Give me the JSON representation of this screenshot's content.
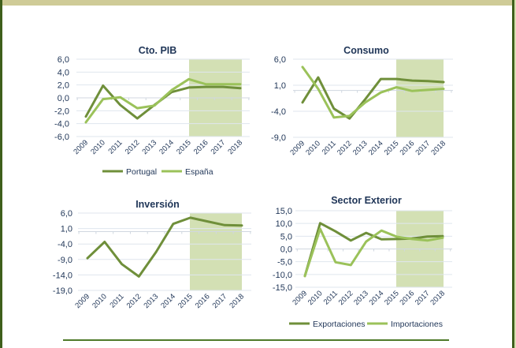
{
  "colors": {
    "dark_series": "#6f8f3a",
    "light_series": "#9bc25a",
    "forecast_band": "#d3e0b4",
    "gridline": "#dfe6ee",
    "text": "#1f3557",
    "frame": "#3f5f1c",
    "top_band": "#cfcb97"
  },
  "chart_data": [
    {
      "type": "line",
      "title": "Cto. PIB",
      "x": [
        "2009",
        "2010",
        "2011",
        "2012",
        "2013",
        "2014",
        "2015",
        "2016",
        "2017",
        "2018"
      ],
      "yticks": [
        "6,0",
        "4,0",
        "2,0",
        "0,0",
        "-2,0",
        "-4,0",
        "-6,0"
      ],
      "ylim": [
        -6,
        6
      ],
      "forecast_range": [
        "2015",
        "2018"
      ],
      "legend": "bottom",
      "series": [
        {
          "name": "Portugal",
          "values": [
            -2.9,
            1.9,
            -1.1,
            -3.2,
            -1.1,
            0.9,
            1.6,
            1.7,
            1.7,
            1.5
          ]
        },
        {
          "name": "España",
          "values": [
            -3.8,
            -0.2,
            0.1,
            -1.6,
            -1.2,
            1.2,
            2.9,
            2.1,
            2.1,
            2.1
          ]
        }
      ]
    },
    {
      "type": "line",
      "title": "Consumo",
      "x": [
        "2009",
        "2010",
        "2011",
        "2012",
        "2013",
        "2014",
        "2015",
        "2016",
        "2017",
        "2018"
      ],
      "yticks": [
        "6,0",
        "1,0",
        "-4,0",
        "-9,0"
      ],
      "ylim": [
        -9,
        6
      ],
      "forecast_range": [
        "2015",
        "2018"
      ],
      "legend": "none",
      "series": [
        {
          "name": "Portugal",
          "values": [
            -2.3,
            2.5,
            -3.5,
            -5.4,
            -1.7,
            2.2,
            2.2,
            1.9,
            1.8,
            1.6
          ]
        },
        {
          "name": "España",
          "values": [
            4.5,
            0.3,
            -5.2,
            -4.9,
            -2.3,
            -0.4,
            0.6,
            -0.1,
            0.1,
            0.3
          ]
        }
      ]
    },
    {
      "type": "line",
      "title": "Inversión",
      "x": [
        "2009",
        "2010",
        "2011",
        "2012",
        "2013",
        "2014",
        "2015",
        "2016",
        "2017",
        "2018"
      ],
      "yticks": [
        "6,0",
        "1,0",
        "-4,0",
        "-9,0",
        "-14,0",
        "-19,0"
      ],
      "ylim": [
        -19,
        6
      ],
      "forecast_range": [
        "2015",
        "2018"
      ],
      "legend": "none",
      "series": [
        {
          "name": "Inversión",
          "values": [
            -8.6,
            -3.3,
            -10.5,
            -14.5,
            -6.6,
            2.5,
            4.5,
            3.3,
            2.1,
            2.0
          ]
        }
      ]
    },
    {
      "type": "line",
      "title": "Sector Exterior",
      "x": [
        "2009",
        "2010",
        "2011",
        "2012",
        "2013",
        "2014",
        "2015",
        "2016",
        "2017",
        "2018"
      ],
      "yticks": [
        "15,0",
        "10,0",
        "5,0",
        "0,0",
        "-5,0",
        "-10,0",
        "-15,0"
      ],
      "ylim": [
        -15,
        15
      ],
      "forecast_range": [
        "2015",
        "2018"
      ],
      "legend": "bottom",
      "series": [
        {
          "name": "Exportaciones",
          "values": [
            -10.6,
            10.1,
            6.9,
            3.3,
            6.3,
            3.8,
            3.9,
            4.1,
            4.9,
            5.0
          ]
        },
        {
          "name": "Importaciones",
          "values": [
            -10.6,
            7.9,
            -5.2,
            -6.3,
            2.9,
            7.2,
            4.8,
            3.9,
            3.3,
            4.4
          ]
        }
      ]
    }
  ]
}
